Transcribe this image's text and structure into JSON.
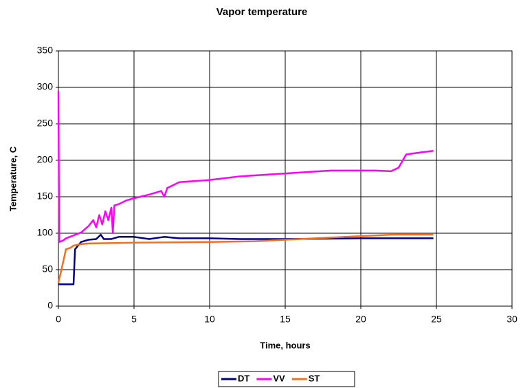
{
  "chart_data": {
    "type": "line",
    "title": "Vapor temperature",
    "xlabel": "Time, hours",
    "ylabel": "Temperature, C",
    "xlim": [
      0,
      30
    ],
    "xticks": [
      0,
      5,
      10,
      15,
      20,
      25,
      30
    ],
    "ylim": [
      0,
      350
    ],
    "yticks": [
      0,
      50,
      100,
      150,
      200,
      250,
      300,
      350
    ],
    "grid": true,
    "legend": "bottom",
    "series": [
      {
        "name": "DT",
        "color": "#000080",
        "x": [
          0,
          1,
          1.1,
          1.5,
          2,
          2.5,
          2.8,
          3,
          3.5,
          4,
          5,
          6,
          7,
          8,
          10,
          12,
          15,
          20,
          24.8
        ],
        "values": [
          30,
          30,
          78,
          88,
          91,
          92,
          98,
          92,
          92,
          95,
          95,
          92,
          95,
          93,
          93,
          92,
          92,
          93,
          93
        ]
      },
      {
        "name": "VV",
        "color": "#ff00ff",
        "x": [
          0,
          0.05,
          0.3,
          0.5,
          1,
          1.5,
          2,
          2.3,
          2.5,
          2.7,
          2.9,
          3.1,
          3.3,
          3.5,
          3.6,
          3.7,
          4,
          4.5,
          5,
          6,
          6.8,
          7,
          7.2,
          8,
          10,
          12,
          15,
          18,
          21,
          22,
          22.5,
          23,
          24,
          24.8
        ],
        "values": [
          295,
          88,
          90,
          93,
          97,
          101,
          110,
          118,
          108,
          125,
          112,
          130,
          118,
          135,
          100,
          138,
          140,
          145,
          148,
          153,
          158,
          150,
          162,
          170,
          173,
          178,
          182,
          186,
          186,
          185,
          190,
          208,
          211,
          213
        ]
      },
      {
        "name": "ST",
        "color": "#f07020",
        "x": [
          0,
          0.2,
          0.5,
          0.8,
          1,
          1.5,
          2,
          5,
          10,
          13,
          15,
          20,
          22,
          24.8
        ],
        "values": [
          32,
          50,
          78,
          80,
          83,
          85,
          86,
          87,
          88,
          89,
          91,
          96,
          98,
          98
        ]
      }
    ]
  }
}
